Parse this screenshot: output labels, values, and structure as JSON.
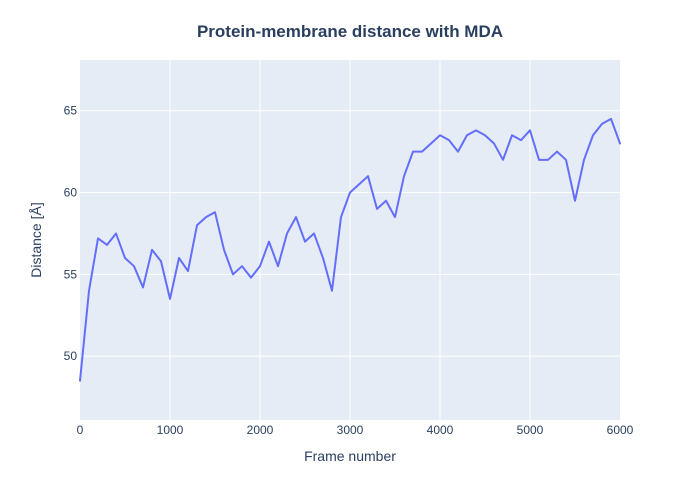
{
  "chart_data": {
    "type": "line",
    "title": "Protein-membrane distance with MDA",
    "xlabel": "Frame number",
    "ylabel": "Distance [Å]",
    "xlim": [
      0,
      6000
    ],
    "ylim": [
      46.1,
      68.1
    ],
    "xticks": [
      0,
      1000,
      2000,
      3000,
      4000,
      5000,
      6000
    ],
    "xtick_labels": [
      "0",
      "1000",
      "2000",
      "3000",
      "4000",
      "5000",
      "6000"
    ],
    "yticks": [
      50,
      55,
      60,
      65
    ],
    "ytick_labels": [
      "50",
      "55",
      "60",
      "65"
    ],
    "grid": true,
    "legend": "none",
    "series": [
      {
        "x": [
          0,
          100,
          200,
          300,
          400,
          500,
          600,
          700,
          800,
          900,
          1000,
          1100,
          1200,
          1300,
          1400,
          1500,
          1600,
          1700,
          1800,
          1900,
          2000,
          2100,
          2200,
          2300,
          2400,
          2500,
          2600,
          2700,
          2800,
          2900,
          3000,
          3100,
          3200,
          3300,
          3400,
          3500,
          3600,
          3700,
          3800,
          3900,
          4000,
          4100,
          4200,
          4300,
          4400,
          4500,
          4600,
          4700,
          4800,
          4900,
          5000,
          5100,
          5200,
          5300,
          5400,
          5500,
          5600,
          5700,
          5800,
          5900,
          6000
        ],
        "values": [
          48.5,
          54.0,
          57.2,
          56.8,
          57.5,
          56.0,
          55.5,
          54.2,
          56.5,
          55.8,
          53.5,
          56.0,
          55.2,
          58.0,
          58.5,
          58.8,
          56.5,
          55.0,
          55.5,
          54.8,
          55.5,
          57.0,
          55.5,
          57.5,
          58.5,
          57.0,
          57.5,
          56.0,
          54.0,
          58.5,
          60.0,
          60.5,
          61.0,
          59.0,
          59.5,
          58.5,
          61.0,
          62.5,
          62.5,
          63.0,
          63.5,
          63.2,
          62.5,
          63.5,
          63.8,
          63.5,
          63.0,
          62.0,
          63.5,
          63.2,
          63.8,
          62.0,
          62.0,
          62.5,
          62.0,
          59.5,
          62.0,
          63.5,
          64.2,
          64.5,
          63.0
        ],
        "color": "#636efa"
      }
    ],
    "colors": {
      "plot_background": "#e5ecf6",
      "grid": "#ffffff",
      "line": "#636efa",
      "text": "#2a3f5f",
      "title": "#2a3f5f"
    }
  }
}
